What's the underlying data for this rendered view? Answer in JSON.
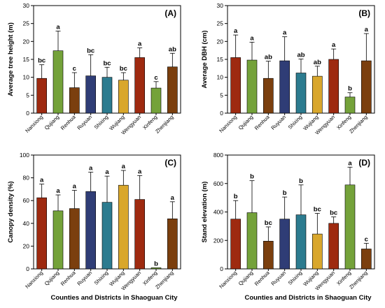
{
  "figure": {
    "bottom_labels": [
      "Counties and Districts in Shaoguan City",
      "Counties and Districts in Shaoguan City"
    ]
  },
  "chart_data": [
    {
      "type": "bar",
      "panel_label": "(A)",
      "title": "",
      "ylabel": "Average tree height (m)",
      "xlabel": "",
      "ylim": [
        0,
        30
      ],
      "yticks": [
        0,
        5,
        10,
        15,
        20,
        25,
        30
      ],
      "categories": [
        "Nanxiong",
        "Qujiang",
        "Renhua",
        "Ruyuan",
        "Shixing",
        "Wujiang",
        "Wengyuan",
        "Xinfeng",
        "Zhenjiang"
      ],
      "values": [
        9.7,
        17.4,
        7.1,
        10.4,
        10.0,
        9.2,
        15.5,
        7.0,
        12.9
      ],
      "errors": [
        3.8,
        5.5,
        4.2,
        5.9,
        2.8,
        2.1,
        2.7,
        1.8,
        3.8
      ],
      "letters": [
        "bc",
        "a",
        "c",
        "bc",
        "bc",
        "bc",
        "a",
        "c",
        "ab"
      ],
      "colors": [
        "#9e2a10",
        "#74a23a",
        "#7b3f0e",
        "#2f3d76",
        "#2c7b8f",
        "#d9a72c",
        "#9e2a10",
        "#74a23a",
        "#7b3f0e"
      ]
    },
    {
      "type": "bar",
      "panel_label": "(B)",
      "title": "",
      "ylabel": "Average DBH (cm)",
      "xlabel": "",
      "ylim": [
        0,
        30
      ],
      "yticks": [
        0,
        5,
        10,
        15,
        20,
        25,
        30
      ],
      "categories": [
        "Nanxiong",
        "Qujiang",
        "Renhua",
        "Ruyuan",
        "Shixing",
        "Wujiang",
        "Wengyuan",
        "Xinfeng",
        "Zhenjiang"
      ],
      "values": [
        15.5,
        14.8,
        9.7,
        14.6,
        11.2,
        10.3,
        15.0,
        4.5,
        14.6
      ],
      "errors": [
        6.3,
        5.0,
        4.8,
        6.7,
        3.9,
        2.8,
        2.9,
        1.2,
        7.6
      ],
      "letters": [
        "a",
        "a",
        "ab",
        "a",
        "ab",
        "ab",
        "a",
        "b",
        "a"
      ],
      "colors": [
        "#9e2a10",
        "#74a23a",
        "#7b3f0e",
        "#2f3d76",
        "#2c7b8f",
        "#d9a72c",
        "#9e2a10",
        "#74a23a",
        "#7b3f0e"
      ]
    },
    {
      "type": "bar",
      "panel_label": "(C)",
      "title": "",
      "ylabel": "Canopy density (%)",
      "xlabel": "Counties and Districts in Shaoguan City",
      "ylim": [
        0,
        100
      ],
      "yticks": [
        0,
        20,
        40,
        60,
        80,
        100
      ],
      "categories": [
        "Nanxiong",
        "Qujiang",
        "Renhua",
        "Ruyuan",
        "Shixing",
        "Wujiang",
        "Wengyuan",
        "Xinfeng",
        "Zhenjiang"
      ],
      "values": [
        62.5,
        51.0,
        53.0,
        68.0,
        58.5,
        73.5,
        61.0,
        1.0,
        44.0
      ],
      "errors": [
        12.0,
        14.0,
        16.0,
        17.0,
        23.0,
        13.0,
        21.0,
        0,
        15.0
      ],
      "letters": [
        "a",
        "a",
        "a",
        "a",
        "a",
        "a",
        "a",
        "b",
        "a"
      ],
      "colors": [
        "#9e2a10",
        "#74a23a",
        "#7b3f0e",
        "#2f3d76",
        "#2c7b8f",
        "#d9a72c",
        "#9e2a10",
        "#74a23a",
        "#7b3f0e"
      ]
    },
    {
      "type": "bar",
      "panel_label": "(D)",
      "title": "",
      "ylabel": "Stand elevation (m)",
      "xlabel": "Counties and Districts in Shaoguan City",
      "ylim": [
        0,
        800
      ],
      "yticks": [
        0,
        200,
        400,
        600,
        800
      ],
      "categories": [
        "Nanxiong",
        "Qujiang",
        "Renhua",
        "Ruyuan",
        "Shixing",
        "Wujiang",
        "Wengyuan",
        "Xinfeng",
        "Zhenjiang"
      ],
      "values": [
        350,
        395,
        195,
        350,
        380,
        245,
        320,
        590,
        140
      ],
      "errors": [
        130,
        225,
        100,
        155,
        210,
        145,
        45,
        125,
        40
      ],
      "letters": [
        "b",
        "b",
        "bc",
        "b",
        "b",
        "bc",
        "bc",
        "a",
        "c"
      ],
      "colors": [
        "#9e2a10",
        "#74a23a",
        "#7b3f0e",
        "#2f3d76",
        "#2c7b8f",
        "#d9a72c",
        "#9e2a10",
        "#74a23a",
        "#7b3f0e"
      ]
    }
  ]
}
